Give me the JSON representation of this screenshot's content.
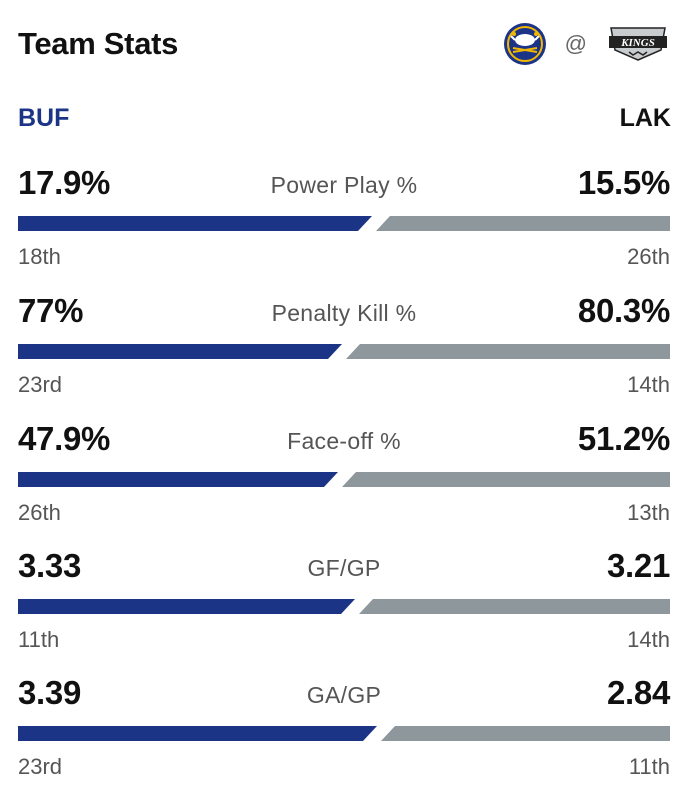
{
  "header": {
    "title": "Team Stats",
    "at": "@",
    "away_logo": "sabres-logo",
    "home_logo": "kings-logo",
    "home_logo_text": "KINGS"
  },
  "teams": {
    "away": "BUF",
    "home": "LAK"
  },
  "colors": {
    "away": "#1b3486",
    "home": "#8e979b"
  },
  "stats": [
    {
      "label": "Power Play %",
      "away_value": "17.9%",
      "home_value": "15.5%",
      "away_rank": "18th",
      "home_rank": "26th",
      "away_num": 17.9,
      "home_num": 15.5
    },
    {
      "label": "Penalty Kill %",
      "away_value": "77%",
      "home_value": "80.3%",
      "away_rank": "23rd",
      "home_rank": "14th",
      "away_num": 77,
      "home_num": 80.3
    },
    {
      "label": "Face-off %",
      "away_value": "47.9%",
      "home_value": "51.2%",
      "away_rank": "26th",
      "home_rank": "13th",
      "away_num": 47.9,
      "home_num": 51.2
    },
    {
      "label": "GF/GP",
      "away_value": "3.33",
      "home_value": "3.21",
      "away_rank": "11th",
      "home_rank": "14th",
      "away_num": 3.33,
      "home_num": 3.21
    },
    {
      "label": "GA/GP",
      "away_value": "3.39",
      "home_value": "2.84",
      "away_rank": "23rd",
      "home_rank": "11th",
      "away_num": 3.39,
      "home_num": 2.84
    }
  ]
}
